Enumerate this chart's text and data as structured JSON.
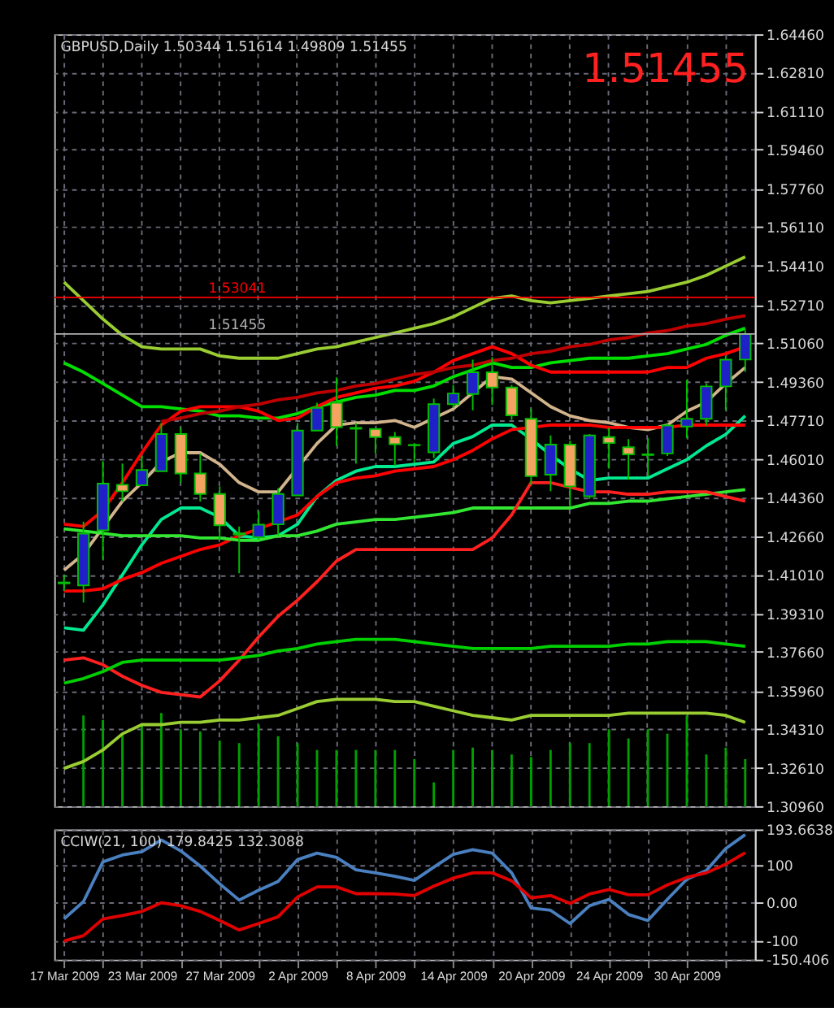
{
  "chart_data": [
    {
      "type": "candlestick",
      "title": "GBPUSD,Daily 1.50344 1.51614 1.49809 1.51455",
      "annotations": [
        "1.51455"
      ],
      "ohlc": [
        [
          1.4067,
          1.41,
          1.403,
          1.4063
        ],
        [
          1.4054,
          1.4331,
          1.398,
          1.4279
        ],
        [
          1.4293,
          1.4594,
          1.4166,
          1.4496
        ],
        [
          1.4491,
          1.4583,
          1.4418,
          1.4463
        ],
        [
          1.4489,
          1.4616,
          1.4489,
          1.4555
        ],
        [
          1.455,
          1.4759,
          1.455,
          1.4711
        ],
        [
          1.4711,
          1.474,
          1.45,
          1.454
        ],
        [
          1.454,
          1.4627,
          1.4418,
          1.4451
        ],
        [
          1.4451,
          1.4484,
          1.4253,
          1.4315
        ],
        [
          1.428,
          1.431,
          1.4107,
          1.4275
        ],
        [
          1.4263,
          1.4377,
          1.4252,
          1.4318
        ],
        [
          1.4319,
          1.4476,
          1.4271,
          1.4451
        ],
        [
          1.4445,
          1.4759,
          1.4445,
          1.4726
        ],
        [
          1.4726,
          1.4847,
          1.4726,
          1.4825
        ],
        [
          1.4847,
          1.4957,
          1.466,
          1.4741
        ],
        [
          1.4738,
          1.4759,
          1.4583,
          1.4734
        ],
        [
          1.4733,
          1.4738,
          1.4627,
          1.4698
        ],
        [
          1.4698,
          1.472,
          1.4573,
          1.4667
        ],
        [
          1.4664,
          1.4672,
          1.4588,
          1.4662
        ],
        [
          1.4632,
          1.4865,
          1.4607,
          1.4841
        ],
        [
          1.4841,
          1.4924,
          1.4825,
          1.4887
        ],
        [
          1.4885,
          1.5034,
          1.4814,
          1.4979
        ],
        [
          1.4979,
          1.5045,
          1.4837,
          1.4913
        ],
        [
          1.4913,
          1.4924,
          1.4773,
          1.4792
        ],
        [
          1.4777,
          1.4821,
          1.4491,
          1.4528
        ],
        [
          1.4535,
          1.4705,
          1.4463,
          1.4665
        ],
        [
          1.4665,
          1.4682,
          1.4397,
          1.4484
        ],
        [
          1.4441,
          1.4711,
          1.443,
          1.4705
        ],
        [
          1.4698,
          1.4738,
          1.4561,
          1.4672
        ],
        [
          1.4654,
          1.4689,
          1.4513,
          1.4623
        ],
        [
          1.4623,
          1.4693,
          1.4528,
          1.462
        ],
        [
          1.4627,
          1.4759,
          1.4616,
          1.4748
        ],
        [
          1.4744,
          1.4946,
          1.4693,
          1.4777
        ],
        [
          1.4777,
          1.4931,
          1.4748,
          1.4918
        ],
        [
          1.4918,
          1.505,
          1.4814,
          1.5034
        ],
        [
          1.50344,
          1.51614,
          1.49809,
          1.51455
        ]
      ],
      "colors": [
        "#f4a460",
        "#2020c8",
        "#2020c8",
        "#f4a460",
        "#2020c8",
        "#2020c8",
        "#f4a460",
        "#f4a460",
        "#f4a460",
        "#f4a460",
        "#2020c8",
        "#2020c8",
        "#2020c8",
        "#2020c8",
        "#f4a460",
        "#f4a460",
        "#f4a460",
        "#f4a460",
        "#f4a460",
        "#2020c8",
        "#2020c8",
        "#2020c8",
        "#f4a460",
        "#f4a460",
        "#f4a460",
        "#2020c8",
        "#f4a460",
        "#2020c8",
        "#f4a460",
        "#f4a460",
        "#f4a460",
        "#2020c8",
        "#2020c8",
        "#2020c8",
        "#2020c8",
        "#2020c8"
      ],
      "series": [
        {
          "type": "bar",
          "color": "#00a000",
          "values": [
            null,
            1.349,
            1.347,
            1.341,
            1.345,
            1.35,
            1.343,
            1.342,
            1.338,
            1.337,
            1.345,
            1.34,
            1.337,
            1.334,
            1.334,
            1.334,
            1.334,
            1.334,
            1.33,
            1.32,
            1.334,
            1.335,
            1.334,
            1.332,
            1.331,
            1.334,
            1.337,
            1.337,
            1.343,
            1.339,
            1.343,
            1.341,
            1.349,
            1.332,
            1.335,
            1.33
          ]
        },
        {
          "type": "line",
          "color": "#9acd32",
          "values": [
            1.537,
            1.529,
            1.521,
            1.514,
            1.509,
            1.508,
            1.508,
            1.508,
            1.505,
            1.504,
            1.504,
            1.504,
            1.506,
            1.508,
            1.509,
            1.511,
            1.513,
            1.515,
            1.517,
            1.519,
            1.522,
            1.526,
            1.53,
            1.531,
            1.529,
            1.528,
            1.529,
            1.53,
            1.531,
            1.532,
            1.533,
            1.535,
            1.537,
            1.54,
            1.544,
            1.548
          ]
        },
        {
          "type": "line",
          "color": "#00e000",
          "values": [
            1.502,
            1.498,
            1.493,
            1.488,
            1.483,
            1.483,
            1.482,
            1.481,
            1.479,
            1.479,
            1.478,
            1.478,
            1.48,
            1.483,
            1.485,
            1.487,
            1.488,
            1.49,
            1.49,
            1.492,
            1.496,
            1.499,
            1.502,
            1.5,
            1.5,
            1.502,
            1.503,
            1.504,
            1.504,
            1.504,
            1.505,
            1.506,
            1.508,
            1.51,
            1.514,
            1.517
          ]
        },
        {
          "type": "line",
          "color": "#ff0000",
          "values": [
            1.432,
            1.431,
            1.438,
            1.45,
            1.463,
            1.475,
            1.481,
            1.483,
            1.483,
            1.483,
            1.481,
            1.477,
            1.478,
            1.483,
            1.487,
            1.489,
            1.491,
            1.492,
            1.494,
            1.498,
            1.503,
            1.506,
            1.509,
            1.506,
            1.501,
            1.498,
            1.498,
            1.498,
            1.498,
            1.498,
            1.498,
            1.5,
            1.5,
            1.504,
            1.506,
            1.509
          ]
        },
        {
          "type": "line",
          "color": "#d2b48c",
          "values": [
            1.412,
            1.419,
            null,
            1.442,
            1.45,
            1.459,
            1.463,
            1.463,
            1.458,
            1.45,
            1.446,
            1.446,
            null,
            1.467,
            1.475,
            1.476,
            1.476,
            1.477,
            1.474,
            1.478,
            1.482,
            1.489,
            1.496,
            1.495,
            1.489,
            1.483,
            1.479,
            1.477,
            1.476,
            1.474,
            1.473,
            1.475,
            1.481,
            1.485,
            1.493,
            1.5
          ]
        },
        {
          "type": "line",
          "color": "#00e890",
          "values": [
            1.387,
            1.386,
            1.397,
            1.41,
            1.423,
            1.434,
            1.439,
            1.439,
            1.435,
            1.427,
            1.426,
            1.427,
            1.432,
            1.444,
            1.451,
            1.455,
            1.457,
            1.457,
            1.458,
            1.459,
            1.467,
            1.47,
            1.475,
            1.475,
            1.469,
            1.462,
            1.456,
            1.451,
            1.452,
            1.452,
            1.452,
            1.456,
            1.46,
            1.466,
            1.471,
            1.479
          ]
        },
        {
          "type": "line",
          "color": "#ff0000",
          "values": [
            1.403,
            1.403,
            1.404,
            1.408,
            1.411,
            1.415,
            1.418,
            1.421,
            1.423,
            1.427,
            1.43,
            1.433,
            1.436,
            1.444,
            1.45,
            1.452,
            1.453,
            1.455,
            1.456,
            1.457,
            1.46,
            1.464,
            1.469,
            1.473,
            1.474,
            1.475,
            1.475,
            1.475,
            1.474,
            1.474,
            1.474,
            1.474,
            1.475,
            1.475,
            1.475,
            1.475
          ]
        },
        {
          "type": "line",
          "color": "#32e632",
          "values": [
            1.43,
            1.429,
            1.428,
            1.427,
            1.427,
            1.427,
            1.427,
            1.426,
            1.426,
            1.425,
            1.425,
            1.427,
            1.427,
            1.429,
            1.432,
            1.433,
            1.434,
            1.434,
            1.435,
            1.436,
            1.437,
            1.439,
            1.439,
            1.439,
            1.439,
            1.439,
            1.439,
            1.441,
            1.441,
            1.442,
            1.442,
            1.443,
            1.444,
            1.445,
            1.446,
            1.447
          ]
        },
        {
          "type": "line",
          "color": "#ff2020",
          "values": [
            1.373,
            1.374,
            1.371,
            1.366,
            1.362,
            1.359,
            1.358,
            1.357,
            1.364,
            1.373,
            1.383,
            1.392,
            1.399,
            1.407,
            1.416,
            1.421,
            1.421,
            1.421,
            1.421,
            1.421,
            1.421,
            1.421,
            1.426,
            1.436,
            1.45,
            1.45,
            1.448,
            1.446,
            1.446,
            1.445,
            1.445,
            1.446,
            1.446,
            1.446,
            1.444,
            1.442
          ]
        },
        {
          "type": "line",
          "color": "#00d000",
          "values": [
            1.363,
            1.365,
            1.368,
            1.372,
            1.373,
            1.373,
            1.373,
            1.373,
            1.373,
            1.374,
            1.375,
            1.377,
            1.378,
            1.38,
            1.381,
            1.382,
            1.382,
            1.382,
            1.381,
            1.38,
            1.379,
            1.378,
            1.378,
            1.378,
            1.378,
            1.379,
            1.379,
            1.379,
            1.379,
            1.38,
            1.38,
            1.381,
            1.381,
            1.381,
            1.38,
            1.379
          ]
        },
        {
          "type": "line",
          "color": "#9acd32",
          "values": [
            1.326,
            1.329,
            1.334,
            1.341,
            1.345,
            1.345,
            1.346,
            1.346,
            1.347,
            1.347,
            1.348,
            1.349,
            1.352,
            1.355,
            1.356,
            1.356,
            1.356,
            1.355,
            1.355,
            1.353,
            1.351,
            1.349,
            1.348,
            1.347,
            1.349,
            1.349,
            1.349,
            1.349,
            1.349,
            1.35,
            1.35,
            1.35,
            1.35,
            1.35,
            1.349,
            1.346
          ]
        },
        {
          "type": "line",
          "color": "#c00000",
          "values": [
            null,
            null,
            null,
            null,
            null,
            1.4766,
            1.478,
            1.48,
            1.481,
            1.483,
            1.484,
            1.486,
            1.487,
            1.489,
            1.49,
            1.492,
            1.493,
            1.495,
            1.497,
            1.498,
            1.5,
            1.501,
            1.503,
            1.504,
            1.506,
            1.507,
            1.509,
            1.51,
            1.512,
            1.513,
            1.515,
            1.516,
            1.518,
            1.519,
            1.521,
            1.5225
          ]
        }
      ],
      "ylim": [
        1.3096,
        1.6446
      ],
      "yticks": [
        {
          "value": 1.6446,
          "label": "1.64460"
        },
        {
          "value": 1.6281,
          "label": "1.62810"
        },
        {
          "value": 1.6111,
          "label": "1.61110"
        },
        {
          "value": 1.5946,
          "label": "1.59460"
        },
        {
          "value": 1.5776,
          "label": "1.57760"
        },
        {
          "value": 1.5611,
          "label": "1.56110"
        },
        {
          "value": 1.5441,
          "label": "1.54410"
        },
        {
          "value": 1.5271,
          "label": "1.52710"
        },
        {
          "value": 1.5106,
          "label": "1.51060"
        },
        {
          "value": 1.4936,
          "label": "1.49360"
        },
        {
          "value": 1.4771,
          "label": "1.47710"
        },
        {
          "value": 1.4601,
          "label": "1.46010"
        },
        {
          "value": 1.4436,
          "label": "1.44360"
        },
        {
          "value": 1.4266,
          "label": "1.42660"
        },
        {
          "value": 1.4101,
          "label": "1.41010"
        },
        {
          "value": 1.3931,
          "label": "1.39310"
        },
        {
          "value": 1.3766,
          "label": "1.37660"
        },
        {
          "value": 1.3596,
          "label": "1.35960"
        },
        {
          "value": 1.3431,
          "label": "1.34310"
        },
        {
          "value": 1.3261,
          "label": "1.32610"
        },
        {
          "value": 1.3096,
          "label": "1.30960"
        }
      ],
      "ref_lines": [
        {
          "axis": "y",
          "value": 1.53041,
          "label": "1.53041",
          "color": "#ff0000"
        },
        {
          "axis": "y",
          "value": 1.51455,
          "label": "1.51455",
          "color": "#b0b0b0"
        }
      ],
      "grid": true,
      "tick_labels": "y",
      "line_style": "solid"
    },
    {
      "type": "line",
      "title": "CCIW(21, 100) 179.8425 132.3088",
      "categories": [
        "17 Mar 2009",
        null,
        null,
        null,
        "23 Mar 2009",
        null,
        null,
        null,
        "27 Mar 2009",
        null,
        null,
        null,
        "2 Apr 2009",
        null,
        null,
        null,
        "8 Apr 2009",
        null,
        null,
        null,
        "14 Apr 2009",
        null,
        null,
        null,
        "20 Apr 2009",
        null,
        null,
        null,
        "24 Apr 2009",
        null,
        null,
        null,
        "30 Apr 2009",
        null,
        null,
        null
      ],
      "series": [
        {
          "color": "#4a80c0",
          "values": [
            -43,
            3,
            108,
            126,
            135,
            166,
            137,
            97,
            50,
            7,
            33,
            56,
            114,
            131,
            120,
            87,
            79,
            70,
            59,
            94,
            128,
            140,
            131,
            79,
            -14,
            -20,
            -55,
            -8,
            9,
            -31,
            -47,
            9,
            62,
            85,
            143,
            179.8425
          ]
        },
        {
          "color": "#e00000",
          "values": [
            -101,
            -87,
            -43,
            -34,
            -23,
            0,
            -8,
            -23,
            -47,
            -72,
            -55,
            -37,
            15,
            42,
            42,
            24,
            24,
            23,
            19,
            44,
            65,
            79,
            79,
            58,
            13,
            19,
            -2,
            23,
            35,
            21,
            21,
            47,
            67,
            79,
            102,
            132.3088
          ]
        }
      ],
      "ylim": [
        -150.406,
        193.6638
      ],
      "yticks": [
        {
          "value": 193.6638,
          "label": "193.6638"
        },
        100,
        {
          "value": 0,
          "label": "0.00"
        },
        -100,
        {
          "value": -150.406,
          "label": "-150.406"
        }
      ],
      "grid": true,
      "line_style": "solid"
    }
  ]
}
